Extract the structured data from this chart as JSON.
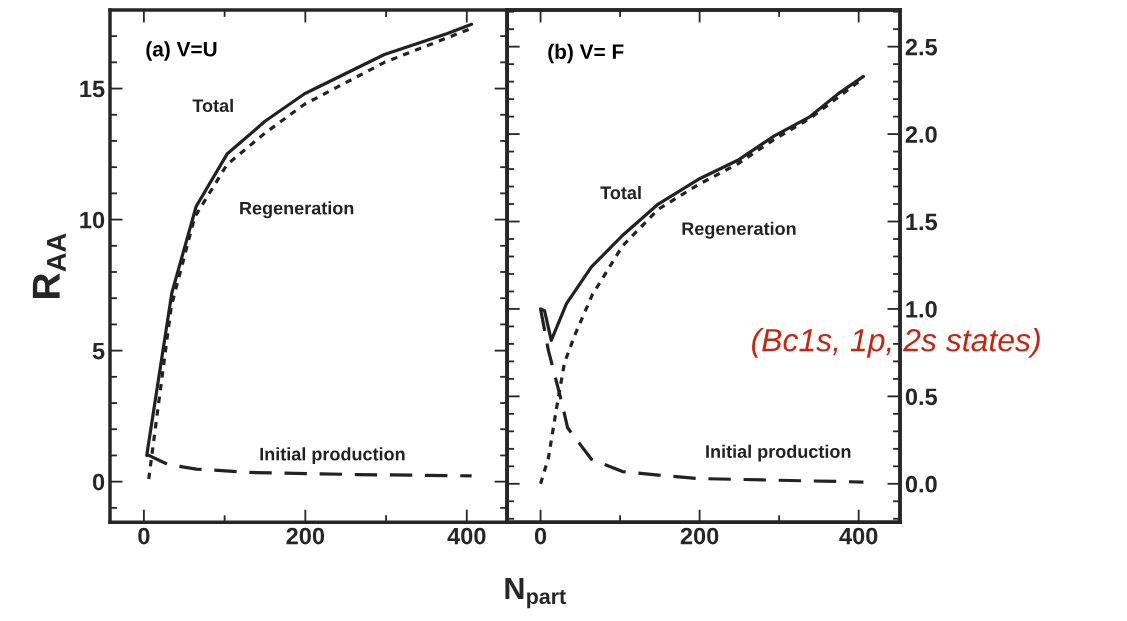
{
  "chart_data": [
    {
      "type": "line",
      "xlabel": "N$_{part}$",
      "ylabel": "R$_{AA}$",
      "xlim": [
        -42,
        450
      ],
      "xticks": [
        0,
        200,
        400
      ],
      "ylim": [
        -1.55,
        18
      ],
      "yticks": [
        0,
        5,
        10,
        15
      ],
      "annotations": [
        "(a) V=U"
      ],
      "series": [
        {
          "name": "Total",
          "color": "#222222",
          "line_style": "solid",
          "x": [
            3.5,
            34.6,
            64.7,
            103,
            150,
            199,
            298,
            376,
            406
          ],
          "values": [
            1.0,
            7.2,
            10.5,
            12.5,
            13.75,
            14.8,
            16.3,
            17.1,
            17.45
          ]
        },
        {
          "name": "Regeneration",
          "color": "#222222",
          "line_style": "dotted",
          "x": [
            6,
            17,
            34,
            63,
            103,
            150,
            199,
            298,
            406
          ],
          "values": [
            0.1,
            2.7,
            6.7,
            10.1,
            12.1,
            13.3,
            14.4,
            16.0,
            17.3
          ]
        },
        {
          "name": "Initial production",
          "color": "#222222",
          "line_style": "dashed",
          "x": [
            3.5,
            30,
            65,
            132,
            265,
            406
          ],
          "values": [
            1.04,
            0.65,
            0.48,
            0.35,
            0.27,
            0.22
          ]
        }
      ]
    },
    {
      "type": "line",
      "xlim": [
        -42,
        452
      ],
      "xticks": [
        0,
        200,
        400
      ],
      "y2lim": [
        -0.22,
        2.71
      ],
      "y2ticks": [
        {
          "value": 0,
          "label": "0.0"
        },
        0.5,
        {
          "value": 1,
          "label": "1.0"
        },
        1.5,
        {
          "value": 2,
          "label": "2.0"
        },
        2.5
      ],
      "annotations": [
        "(b) V= F",
        "(Bc1s, 1p, 2s states)"
      ],
      "series": [
        {
          "name": "Total",
          "color": "#222222",
          "line_style": "solid",
          "axis": "y2",
          "x": [
            0,
            5,
            13.5,
            32.6,
            64,
            103,
            148,
            198,
            248,
            294,
            339,
            374,
            406
          ],
          "values": [
            1.0,
            0.99,
            0.82,
            1.03,
            1.24,
            1.42,
            1.6,
            1.74,
            1.85,
            1.99,
            2.1,
            2.23,
            2.33
          ]
        },
        {
          "name": "Regeneration",
          "color": "#222222",
          "line_style": "dotted",
          "axis": "y2",
          "x": [
            0,
            10,
            20,
            30,
            43,
            65,
            103,
            148,
            198,
            248,
            294,
            339,
            406
          ],
          "values": [
            0.0,
            0.15,
            0.43,
            0.69,
            0.85,
            1.08,
            1.36,
            1.57,
            1.71,
            1.83,
            1.97,
            2.09,
            2.32
          ]
        },
        {
          "name": "Initial production",
          "color": "#222222",
          "line_style": "dashed",
          "axis": "y2",
          "x": [
            0,
            10,
            27,
            34,
            64,
            103,
            148,
            198,
            406
          ],
          "values": [
            1.0,
            0.76,
            0.46,
            0.32,
            0.14,
            0.07,
            0.05,
            0.03,
            0.01
          ]
        }
      ]
    }
  ]
}
